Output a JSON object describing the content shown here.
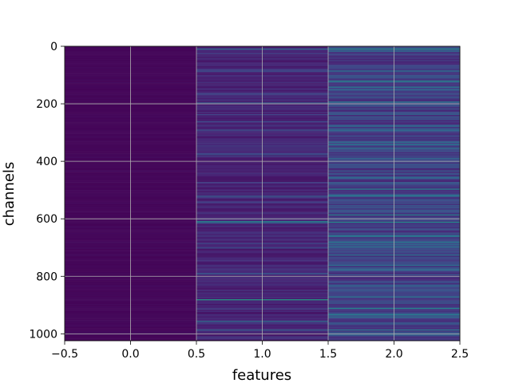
{
  "chart_data": {
    "type": "heatmap",
    "title": "",
    "xlabel": "features",
    "ylabel": "channels",
    "xlim": [
      -0.5,
      2.5
    ],
    "ylim": [
      1024,
      0
    ],
    "x_ticks": [
      -0.5,
      0.0,
      0.5,
      1.0,
      1.5,
      2.0,
      2.5
    ],
    "x_tick_labels": [
      "−0.5",
      "0.0",
      "0.5",
      "1.0",
      "1.5",
      "2.0",
      "2.5"
    ],
    "y_ticks": [
      0,
      200,
      400,
      600,
      800,
      1000
    ],
    "y_tick_labels": [
      "0",
      "200",
      "400",
      "600",
      "800",
      "1000"
    ],
    "grid": true,
    "colormap": "viridis",
    "n_rows": 1024,
    "columns": [
      {
        "feature": 0,
        "base_level": 0.02,
        "highlights": []
      },
      {
        "feature": 1,
        "base_level": 0.12,
        "highlights": [
          {
            "channel": 8,
            "level": 0.45
          },
          {
            "channel": 85,
            "level": 0.3
          },
          {
            "channel": 195,
            "level": 0.35
          },
          {
            "channel": 290,
            "level": 0.3
          },
          {
            "channel": 375,
            "level": 0.3
          },
          {
            "channel": 520,
            "level": 0.35
          },
          {
            "channel": 608,
            "level": 0.55
          },
          {
            "channel": 612,
            "level": 0.45
          },
          {
            "channel": 700,
            "level": 0.3
          },
          {
            "channel": 790,
            "level": 0.35
          },
          {
            "channel": 880,
            "level": 0.7
          },
          {
            "channel": 955,
            "level": 0.45
          },
          {
            "channel": 985,
            "level": 0.4
          }
        ]
      },
      {
        "feature": 2,
        "base_level": 0.22,
        "highlights": [
          {
            "channel": 8,
            "level": 0.6
          },
          {
            "channel": 15,
            "level": 0.45
          },
          {
            "channel": 120,
            "level": 0.6
          },
          {
            "channel": 150,
            "level": 0.45
          },
          {
            "channel": 235,
            "level": 0.4
          },
          {
            "channel": 290,
            "level": 0.45
          },
          {
            "channel": 495,
            "level": 0.55
          },
          {
            "channel": 520,
            "level": 0.45
          },
          {
            "channel": 585,
            "level": 0.55
          },
          {
            "channel": 610,
            "level": 0.6
          },
          {
            "channel": 680,
            "level": 0.5
          },
          {
            "channel": 760,
            "level": 0.45
          },
          {
            "channel": 870,
            "level": 0.5
          },
          {
            "channel": 910,
            "level": 0.55
          },
          {
            "channel": 930,
            "level": 0.45
          },
          {
            "channel": 985,
            "level": 0.5
          },
          {
            "channel": 1000,
            "level": 0.45
          }
        ]
      }
    ]
  }
}
